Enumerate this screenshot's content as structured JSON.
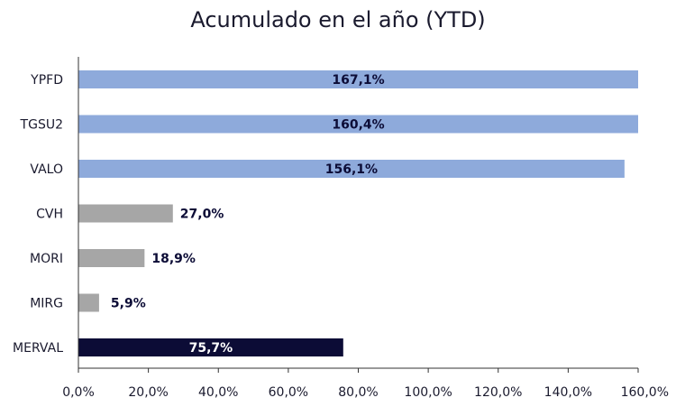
{
  "chart_data": {
    "type": "bar",
    "orientation": "horizontal",
    "title": "Acumulado en el año (YTD)",
    "categories": [
      "YPFD",
      "TGSU2",
      "VALO",
      "CVH",
      "MORI",
      "MIRG",
      "MERVAL"
    ],
    "values": [
      167.1,
      160.4,
      156.1,
      27.0,
      18.9,
      5.9,
      75.7
    ],
    "data_labels": [
      "167,1%",
      "160,4%",
      "156,1%",
      "27,0%",
      "18,9%",
      "5,9%",
      "75,7%"
    ],
    "bar_colors": [
      "#8eaadb",
      "#8eaadb",
      "#8eaadb",
      "#a6a6a6",
      "#a6a6a6",
      "#a6a6a6",
      "#0c0c36"
    ],
    "label_colors": [
      "#0c0c36",
      "#0c0c36",
      "#0c0c36",
      "#0c0c36",
      "#0c0c36",
      "#0c0c36",
      "#ffffff"
    ],
    "label_position": [
      "inside",
      "inside",
      "inside",
      "outside",
      "outside",
      "outside",
      "inside"
    ],
    "xlim": [
      0,
      160
    ],
    "x_ticks": [
      0,
      20,
      40,
      60,
      80,
      100,
      120,
      140,
      160
    ],
    "x_tick_labels": [
      "0,0%",
      "20,0%",
      "40,0%",
      "60,0%",
      "80,0%",
      "100,0%",
      "120,0%",
      "140,0%",
      "160,0%"
    ],
    "xlabel": "",
    "ylabel": "",
    "grid": false,
    "legend": "none"
  }
}
